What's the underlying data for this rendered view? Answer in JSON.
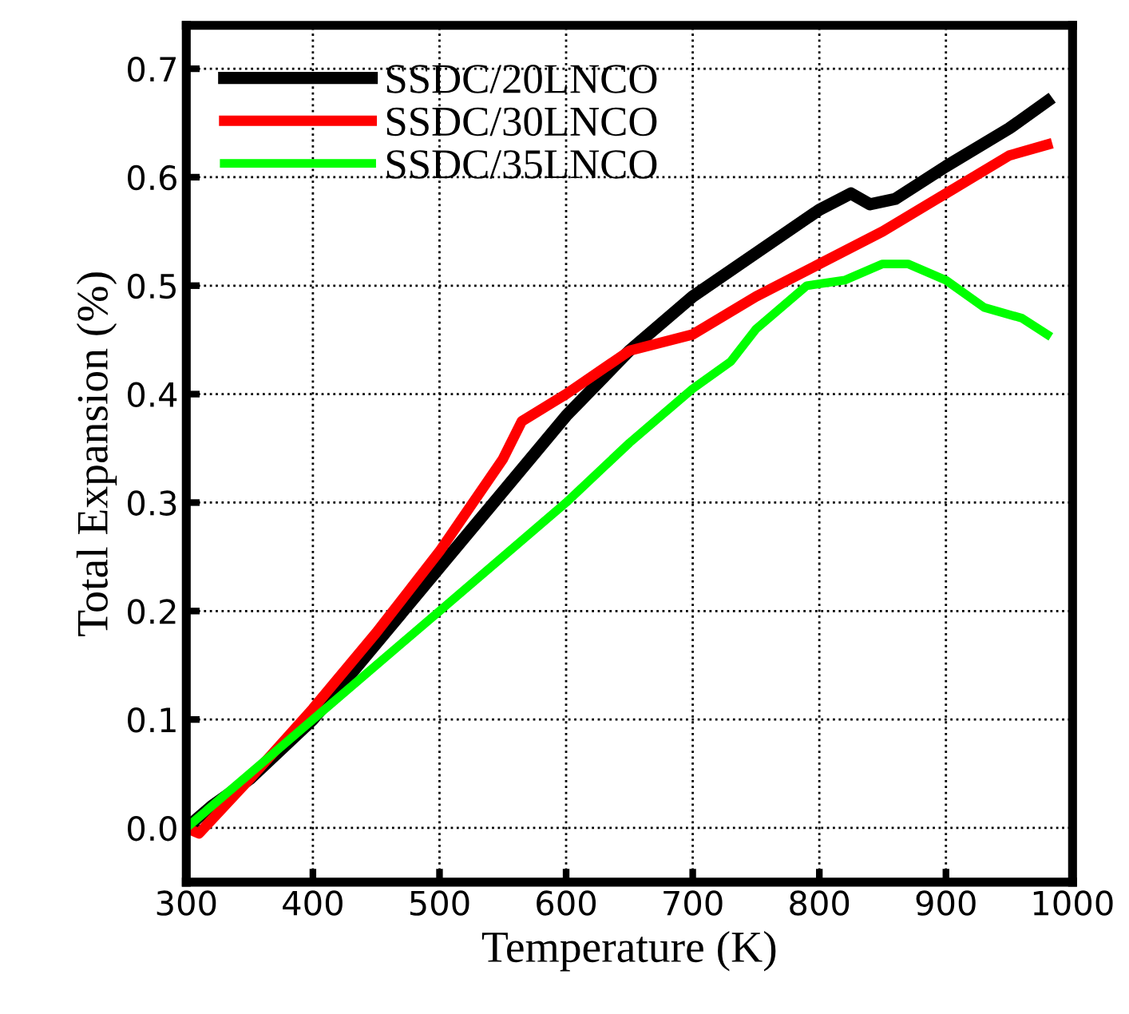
{
  "chart_data": {
    "type": "line",
    "xlabel": "Temperature (K)",
    "ylabel": "Total Expansion (%)",
    "xlim": [
      300,
      1000
    ],
    "ylim": [
      -0.05,
      0.74
    ],
    "xticks": [
      300,
      400,
      500,
      600,
      700,
      800,
      900,
      1000
    ],
    "yticks": [
      {
        "value": 0,
        "label": "0.0"
      },
      0.1,
      0.2,
      0.3,
      0.4,
      0.5,
      0.6,
      0.7
    ],
    "grid": true,
    "legend": "top left",
    "marker": "none",
    "line_style": "solid",
    "series": [
      {
        "name": "SSDC/20LNCO",
        "color": "#000000",
        "x": [
          300,
          320,
          350,
          400,
          450,
          500,
          550,
          600,
          650,
          700,
          750,
          800,
          825,
          840,
          860,
          900,
          950,
          980
        ],
        "values": [
          0.0,
          0.02,
          0.045,
          0.1,
          0.17,
          0.24,
          0.31,
          0.38,
          0.44,
          0.49,
          0.53,
          0.57,
          0.585,
          0.575,
          0.58,
          0.61,
          0.645,
          0.67
        ]
      },
      {
        "name": "SSDC/30LNCO",
        "color": "#ff0000",
        "x": [
          300,
          310,
          330,
          350,
          400,
          450,
          500,
          550,
          565,
          600,
          650,
          700,
          750,
          800,
          850,
          900,
          950,
          980
        ],
        "values": [
          0.0,
          -0.005,
          0.02,
          0.045,
          0.11,
          0.18,
          0.255,
          0.34,
          0.375,
          0.4,
          0.44,
          0.455,
          0.49,
          0.52,
          0.55,
          0.585,
          0.62,
          0.63
        ]
      },
      {
        "name": "SSDC/35LNCO",
        "color": "#00ff00",
        "x": [
          300,
          350,
          400,
          450,
          500,
          550,
          600,
          650,
          700,
          730,
          750,
          790,
          820,
          850,
          870,
          900,
          930,
          960,
          980
        ],
        "values": [
          0.0,
          0.05,
          0.1,
          0.15,
          0.2,
          0.25,
          0.3,
          0.355,
          0.405,
          0.43,
          0.46,
          0.5,
          0.505,
          0.52,
          0.52,
          0.505,
          0.48,
          0.47,
          0.455
        ]
      }
    ]
  }
}
